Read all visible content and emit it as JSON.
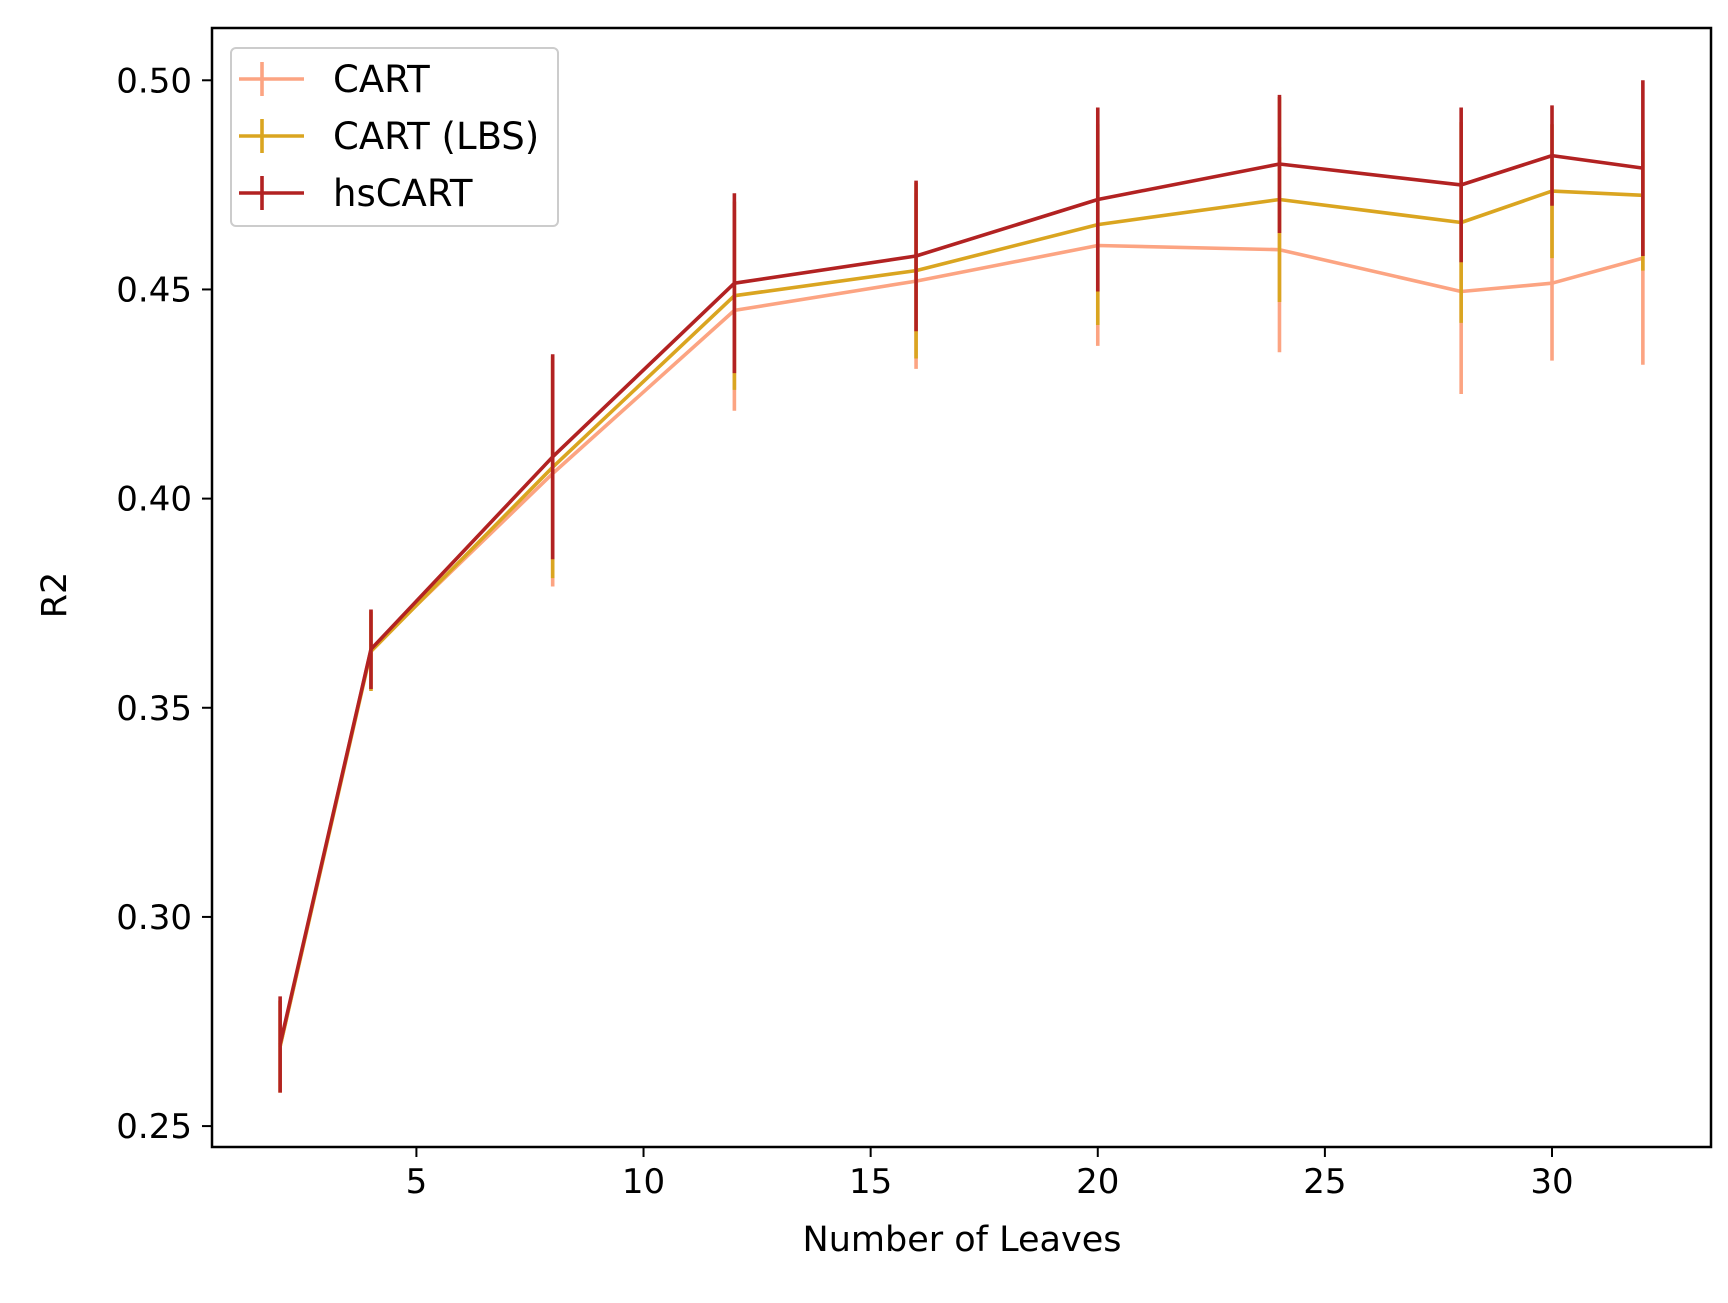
{
  "chart_data": {
    "type": "line",
    "xlabel": "Number of Leaves",
    "ylabel": "R2",
    "xlim": [
      0.5,
      33.5
    ],
    "ylim": [
      0.245,
      0.5125
    ],
    "xticks": [
      5,
      10,
      15,
      20,
      25,
      30
    ],
    "yticks": [
      0.25,
      0.3,
      0.35,
      0.4,
      0.45,
      0.5
    ],
    "ytick_labels": [
      "0.25",
      "0.30",
      "0.35",
      "0.40",
      "0.45",
      "0.50"
    ],
    "grid": false,
    "legend_position": "top-left",
    "x": [
      2,
      4,
      8,
      12,
      16,
      20,
      24,
      28,
      30,
      32
    ],
    "series": [
      {
        "name": "CART",
        "color": "#fca482",
        "values": [
          0.269,
          0.364,
          0.406,
          0.445,
          0.452,
          0.4605,
          0.4595,
          0.4495,
          0.4515,
          0.4575
        ],
        "errors": [
          0.011,
          0.0095,
          0.027,
          0.024,
          0.021,
          0.024,
          0.0245,
          0.0245,
          0.0185,
          0.0255
        ]
      },
      {
        "name": "CART (LBS)",
        "color": "#daa520",
        "values": [
          0.269,
          0.3635,
          0.4075,
          0.4485,
          0.4545,
          0.4655,
          0.4715,
          0.466,
          0.4735,
          0.4725
        ],
        "errors": [
          0.011,
          0.0095,
          0.0265,
          0.0225,
          0.021,
          0.024,
          0.0245,
          0.024,
          0.016,
          0.018
        ]
      },
      {
        "name": "hsCART",
        "color": "#b22222",
        "values": [
          0.2695,
          0.364,
          0.41,
          0.4515,
          0.458,
          0.4715,
          0.48,
          0.475,
          0.482,
          0.479
        ],
        "errors": [
          0.0115,
          0.0095,
          0.0245,
          0.0215,
          0.018,
          0.022,
          0.0165,
          0.0185,
          0.012,
          0.021
        ]
      }
    ]
  }
}
